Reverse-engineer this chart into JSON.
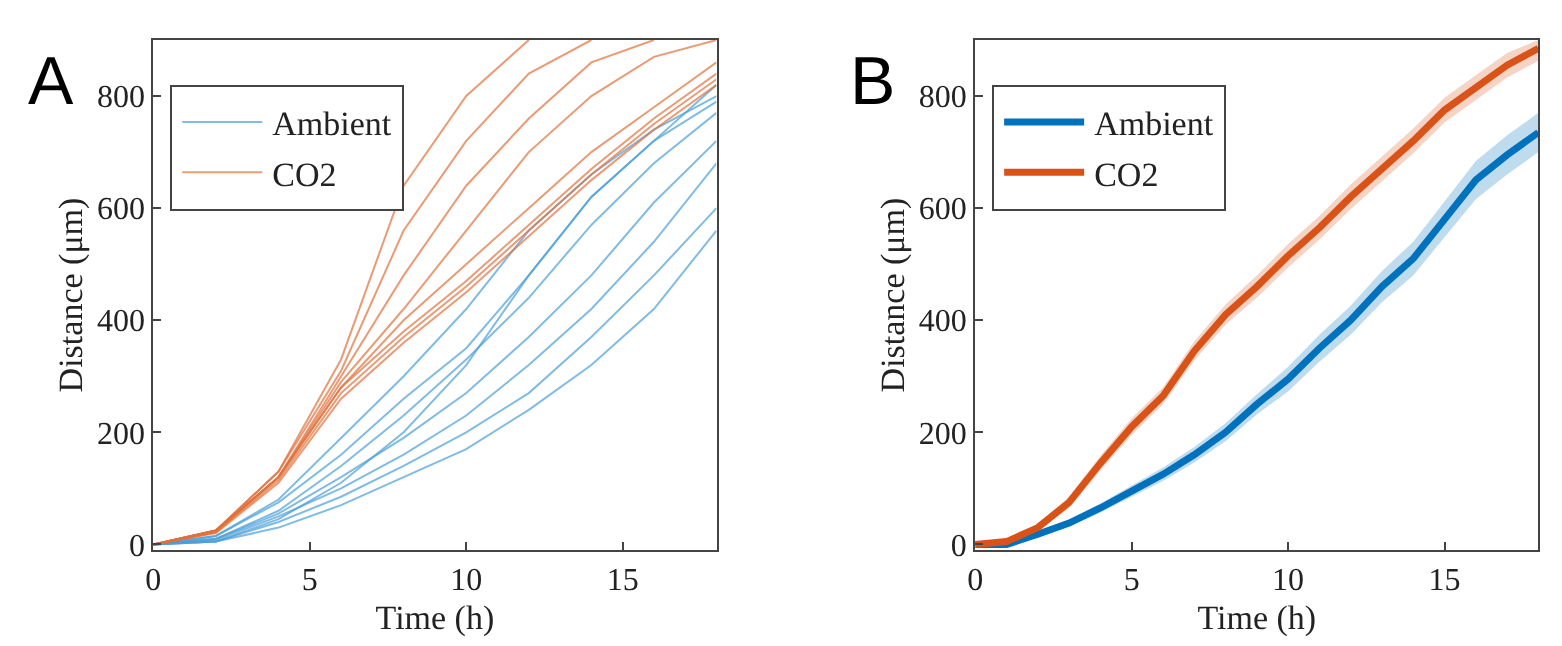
{
  "chart_data": [
    {
      "type": "line",
      "title": "A",
      "xlabel": "Time (h)",
      "ylabel": "Distance (μm)",
      "x": [
        0,
        2,
        4,
        6,
        8,
        10,
        12,
        14,
        16,
        18
      ],
      "xlim": [
        0,
        18
      ],
      "ylim": [
        -10,
        900
      ],
      "xticks": [
        0,
        5,
        10,
        15
      ],
      "yticks": [
        0,
        200,
        400,
        600,
        800
      ],
      "legend": "top left",
      "series": [
        {
          "name": "Ambient",
          "color": "#4a9fd8",
          "values": [
            0,
            15,
            80,
            190,
            300,
            420,
            560,
            660,
            740,
            800
          ]
        },
        {
          "color": "#4a9fd8",
          "values": [
            0,
            15,
            75,
            160,
            260,
            350,
            480,
            620,
            720,
            790
          ]
        },
        {
          "color": "#4a9fd8",
          "values": [
            0,
            10,
            60,
            140,
            230,
            330,
            440,
            570,
            680,
            770
          ]
        },
        {
          "color": "#4a9fd8",
          "values": [
            0,
            10,
            55,
            120,
            190,
            270,
            370,
            480,
            610,
            720
          ]
        },
        {
          "color": "#4a9fd8",
          "values": [
            0,
            8,
            50,
            100,
            160,
            230,
            320,
            420,
            540,
            680
          ]
        },
        {
          "color": "#4a9fd8",
          "values": [
            0,
            5,
            40,
            85,
            140,
            200,
            270,
            370,
            480,
            600
          ]
        },
        {
          "color": "#4a9fd8",
          "values": [
            0,
            5,
            30,
            70,
            120,
            170,
            240,
            320,
            420,
            560
          ]
        },
        {
          "color": "#4a9fd8",
          "values": [
            0,
            5,
            45,
            110,
            200,
            320,
            480,
            620,
            720,
            820
          ]
        },
        {
          "name": "CO2",
          "color": "#e2703a",
          "values": [
            0,
            25,
            130,
            330,
            640,
            800,
            900,
            null,
            null,
            null
          ]
        },
        {
          "color": "#e2703a",
          "values": [
            0,
            25,
            130,
            310,
            560,
            720,
            840,
            900,
            null,
            null
          ]
        },
        {
          "color": "#e2703a",
          "values": [
            0,
            25,
            120,
            300,
            480,
            640,
            760,
            860,
            900,
            null
          ]
        },
        {
          "color": "#e2703a",
          "values": [
            0,
            25,
            120,
            290,
            420,
            560,
            700,
            800,
            870,
            900
          ]
        },
        {
          "color": "#e2703a",
          "values": [
            0,
            25,
            120,
            280,
            380,
            470,
            570,
            670,
            760,
            840
          ]
        },
        {
          "color": "#e2703a",
          "values": [
            0,
            22,
            115,
            270,
            370,
            460,
            560,
            660,
            750,
            830
          ]
        },
        {
          "color": "#e2703a",
          "values": [
            0,
            20,
            110,
            260,
            360,
            450,
            550,
            650,
            740,
            820
          ]
        },
        {
          "color": "#e2703a",
          "values": [
            0,
            22,
            120,
            280,
            400,
            500,
            600,
            700,
            780,
            860
          ]
        }
      ]
    },
    {
      "type": "line",
      "title": "B",
      "xlabel": "Time (h)",
      "ylabel": "Distance (μm)",
      "x": [
        0,
        1,
        2,
        3,
        4,
        5,
        6,
        7,
        8,
        9,
        10,
        11,
        12,
        13,
        14,
        15,
        16,
        17,
        18
      ],
      "xlim": [
        0,
        18
      ],
      "ylim": [
        -10,
        900
      ],
      "xticks": [
        0,
        5,
        10,
        15
      ],
      "yticks": [
        0,
        200,
        400,
        600,
        800
      ],
      "legend": "top left",
      "series": [
        {
          "name": "Ambient",
          "color": "#0072bd",
          "values": [
            0,
            0,
            18,
            38,
            65,
            95,
            125,
            160,
            200,
            250,
            295,
            350,
            400,
            460,
            510,
            580,
            650,
            695,
            735
          ],
          "lower": [
            0,
            0,
            14,
            32,
            57,
            85,
            113,
            146,
            184,
            232,
            273,
            326,
            374,
            432,
            480,
            548,
            616,
            660,
            700
          ],
          "upper": [
            0,
            0,
            22,
            44,
            73,
            105,
            137,
            174,
            216,
            268,
            317,
            374,
            426,
            488,
            540,
            612,
            684,
            730,
            770
          ]
        },
        {
          "name": "CO2",
          "color": "#d95319",
          "values": [
            0,
            5,
            30,
            75,
            145,
            210,
            265,
            345,
            410,
            460,
            515,
            565,
            620,
            670,
            720,
            775,
            815,
            855,
            885
          ],
          "lower": [
            0,
            3,
            24,
            65,
            132,
            195,
            250,
            328,
            392,
            440,
            494,
            544,
            598,
            648,
            698,
            753,
            793,
            833,
            863
          ],
          "upper": [
            0,
            7,
            36,
            85,
            158,
            225,
            280,
            362,
            428,
            480,
            536,
            586,
            642,
            692,
            742,
            797,
            837,
            877,
            900
          ]
        }
      ]
    }
  ]
}
